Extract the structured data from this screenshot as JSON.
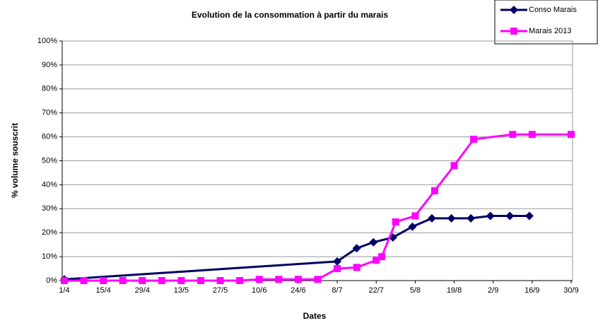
{
  "chart_data": {
    "type": "line",
    "title": "Evolution de la consommation à partir du marais",
    "x_label": "Dates",
    "y_label": "% volume souscrit",
    "xlim": [
      "1/4",
      "30/9"
    ],
    "xticks": [
      "1/4",
      "15/4",
      "29/4",
      "13/5",
      "27/5",
      "10/6",
      "24/6",
      "8/7",
      "22/7",
      "5/8",
      "19/8",
      "2/9",
      "16/9",
      "30/9"
    ],
    "ylim": [
      0,
      100
    ],
    "yticks": [
      {
        "value": 0,
        "label": "0%"
      },
      {
        "value": 10,
        "label": "10%"
      },
      {
        "value": 20,
        "label": "20%"
      },
      {
        "value": 30,
        "label": "30%"
      },
      {
        "value": 40,
        "label": "40%"
      },
      {
        "value": 50,
        "label": "50%"
      },
      {
        "value": 60,
        "label": "60%"
      },
      {
        "value": 70,
        "label": "70%"
      },
      {
        "value": 80,
        "label": "80%"
      },
      {
        "value": 90,
        "label": "90%"
      },
      {
        "value": 100,
        "label": "100%"
      }
    ],
    "grid": true,
    "legend": "top-right",
    "series": [
      {
        "name": "Conso Marais",
        "color": "#000066",
        "marker": "diamond",
        "x": [
          "1/4",
          "8/7",
          "15/7",
          "21/7",
          "28/7",
          "4/8",
          "11/8",
          "18/8",
          "25/8",
          "1/9",
          "8/9",
          "15/9"
        ],
        "values": [
          0.5,
          8,
          13.5,
          16,
          18,
          22.5,
          26,
          26,
          26,
          27,
          27,
          27
        ]
      },
      {
        "name": "Marais 2013",
        "color": "#ff00ff",
        "marker": "square",
        "x": [
          "1/4",
          "8/4",
          "15/4",
          "22/4",
          "29/4",
          "6/5",
          "13/5",
          "20/5",
          "27/5",
          "3/6",
          "10/6",
          "17/6",
          "24/6",
          "1/7",
          "8/7",
          "15/7",
          "22/7",
          "24/7",
          "29/7",
          "5/8",
          "12/8",
          "19/8",
          "26/8",
          "9/9",
          "16/9",
          "30/9"
        ],
        "values": [
          0,
          0,
          0,
          0,
          0,
          0,
          0,
          0,
          0,
          0,
          0.5,
          0.5,
          0.5,
          0.5,
          5,
          5.5,
          8.5,
          10,
          24.5,
          27,
          37.5,
          48,
          59,
          61,
          61,
          61
        ]
      }
    ]
  }
}
